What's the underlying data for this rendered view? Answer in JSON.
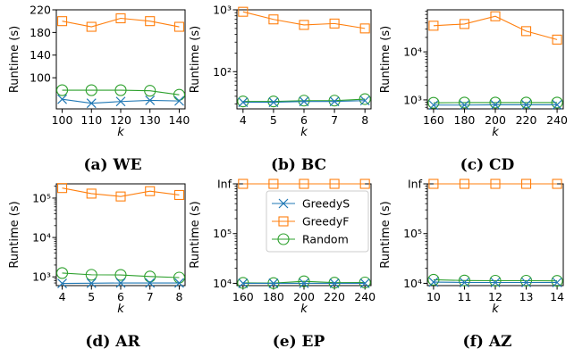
{
  "colors": {
    "GreedyS": "#1f77b4",
    "GreedyF": "#ff7f0e",
    "Random": "#2ca02c"
  },
  "legend": {
    "panel": 4,
    "entries": [
      {
        "series": "GreedyS",
        "marker": "x",
        "color": "#1f77b4"
      },
      {
        "series": "GreedyF",
        "marker": "square",
        "color": "#ff7f0e"
      },
      {
        "series": "Random",
        "marker": "circle",
        "color": "#2ca02c"
      }
    ]
  },
  "chart_data": [
    {
      "type": "line",
      "caption": "(a) WE",
      "xlabel": "k",
      "ylabel": "Runtime (s)",
      "yscale": "linear",
      "ylim": [
        45,
        220
      ],
      "yticks": [
        {
          "v": 100,
          "label": "100"
        },
        {
          "v": 140,
          "label": "140"
        },
        {
          "v": 180,
          "label": "180"
        },
        {
          "v": 220,
          "label": "220"
        }
      ],
      "x": [
        100,
        110,
        120,
        130,
        140
      ],
      "xticks": [
        "100",
        "110",
        "120",
        "130",
        "140"
      ],
      "series": [
        {
          "name": "GreedyS",
          "values": [
            62,
            55,
            58,
            60,
            59
          ]
        },
        {
          "name": "GreedyF",
          "values": [
            200,
            190,
            205,
            200,
            190
          ]
        },
        {
          "name": "Random",
          "values": [
            78,
            78,
            78,
            77,
            70
          ]
        }
      ]
    },
    {
      "type": "line",
      "caption": "(b) BC",
      "xlabel": "k",
      "ylabel": "Runtime (s)",
      "yscale": "log",
      "ylim": [
        25,
        1000
      ],
      "yticks": [
        {
          "v": 100,
          "label": "10²"
        },
        {
          "v": 1000,
          "label": "10³"
        }
      ],
      "x": [
        4,
        5,
        6,
        7,
        8
      ],
      "xticks": [
        "4",
        "5",
        "6",
        "7",
        "8"
      ],
      "series": [
        {
          "name": "GreedyS",
          "values": [
            32,
            32,
            33,
            33,
            34
          ]
        },
        {
          "name": "GreedyF",
          "values": [
            930,
            700,
            570,
            600,
            500
          ]
        },
        {
          "name": "Random",
          "values": [
            33,
            33,
            34,
            34,
            36
          ]
        }
      ]
    },
    {
      "type": "line",
      "caption": "(c) CD",
      "xlabel": "k",
      "ylabel": "Runtime (s)",
      "yscale": "log",
      "ylim": [
        650,
        75000
      ],
      "yticks": [
        {
          "v": 1000,
          "label": "10³"
        },
        {
          "v": 10000,
          "label": "10⁴"
        }
      ],
      "x": [
        160,
        180,
        200,
        220,
        240
      ],
      "xticks": [
        "160",
        "180",
        "200",
        "220",
        "240"
      ],
      "series": [
        {
          "name": "GreedyS",
          "values": [
            780,
            780,
            790,
            790,
            790
          ]
        },
        {
          "name": "GreedyF",
          "values": [
            35000,
            38000,
            55000,
            27000,
            18000
          ]
        },
        {
          "name": "Random",
          "values": [
            870,
            880,
            880,
            880,
            880
          ]
        }
      ]
    },
    {
      "type": "line",
      "caption": "(d) AR",
      "xlabel": "k",
      "ylabel": "Runtime (s)",
      "yscale": "log",
      "ylim": [
        600,
        230000
      ],
      "yticks": [
        {
          "v": 1000,
          "label": "10³"
        },
        {
          "v": 10000,
          "label": "10⁴"
        },
        {
          "v": 100000,
          "label": "10⁵"
        }
      ],
      "x": [
        4,
        5,
        6,
        7,
        8
      ],
      "xticks": [
        "4",
        "5",
        "6",
        "7",
        "8"
      ],
      "series": [
        {
          "name": "GreedyS",
          "values": [
            680,
            690,
            700,
            700,
            700
          ]
        },
        {
          "name": "GreedyF",
          "values": [
            180000,
            130000,
            110000,
            150000,
            120000
          ]
        },
        {
          "name": "Random",
          "values": [
            1250,
            1130,
            1120,
            1020,
            960
          ]
        }
      ]
    },
    {
      "type": "line",
      "caption": "(e) EP",
      "xlabel": "k",
      "ylabel": "Runtime (s)",
      "yscale": "log",
      "ylim": [
        9000,
        1000000
      ],
      "yticks": [
        {
          "v": 10000,
          "label": "10⁴"
        },
        {
          "v": 100000,
          "label": "10⁵"
        },
        {
          "v": 1000000,
          "label": "Inf"
        }
      ],
      "x": [
        160,
        180,
        200,
        220,
        240
      ],
      "xticks": [
        "160",
        "180",
        "200",
        "220",
        "240"
      ],
      "series": [
        {
          "name": "GreedyS",
          "values": [
            10000,
            10000,
            10000,
            10000,
            10000
          ]
        },
        {
          "name": "GreedyF",
          "values": [
            1000000,
            1000000,
            1000000,
            1000000,
            1000000
          ]
        },
        {
          "name": "Random",
          "values": [
            10200,
            10100,
            11000,
            10300,
            10400
          ]
        }
      ]
    },
    {
      "type": "line",
      "caption": "(f) AZ",
      "xlabel": "k",
      "ylabel": "Runtime (s)",
      "yscale": "log",
      "ylim": [
        9000,
        1000000
      ],
      "yticks": [
        {
          "v": 10000,
          "label": "10⁴"
        },
        {
          "v": 100000,
          "label": "10⁵"
        },
        {
          "v": 1000000,
          "label": "Inf"
        }
      ],
      "x": [
        10,
        11,
        12,
        13,
        14
      ],
      "xticks": [
        "10",
        "11",
        "12",
        "13",
        "14"
      ],
      "series": [
        {
          "name": "GreedyS",
          "values": [
            10600,
            10400,
            10400,
            10400,
            10400
          ]
        },
        {
          "name": "GreedyF",
          "values": [
            1000000,
            1000000,
            1000000,
            1000000,
            1000000
          ]
        },
        {
          "name": "Random",
          "values": [
            11800,
            11400,
            11300,
            11300,
            11200
          ]
        }
      ]
    }
  ]
}
